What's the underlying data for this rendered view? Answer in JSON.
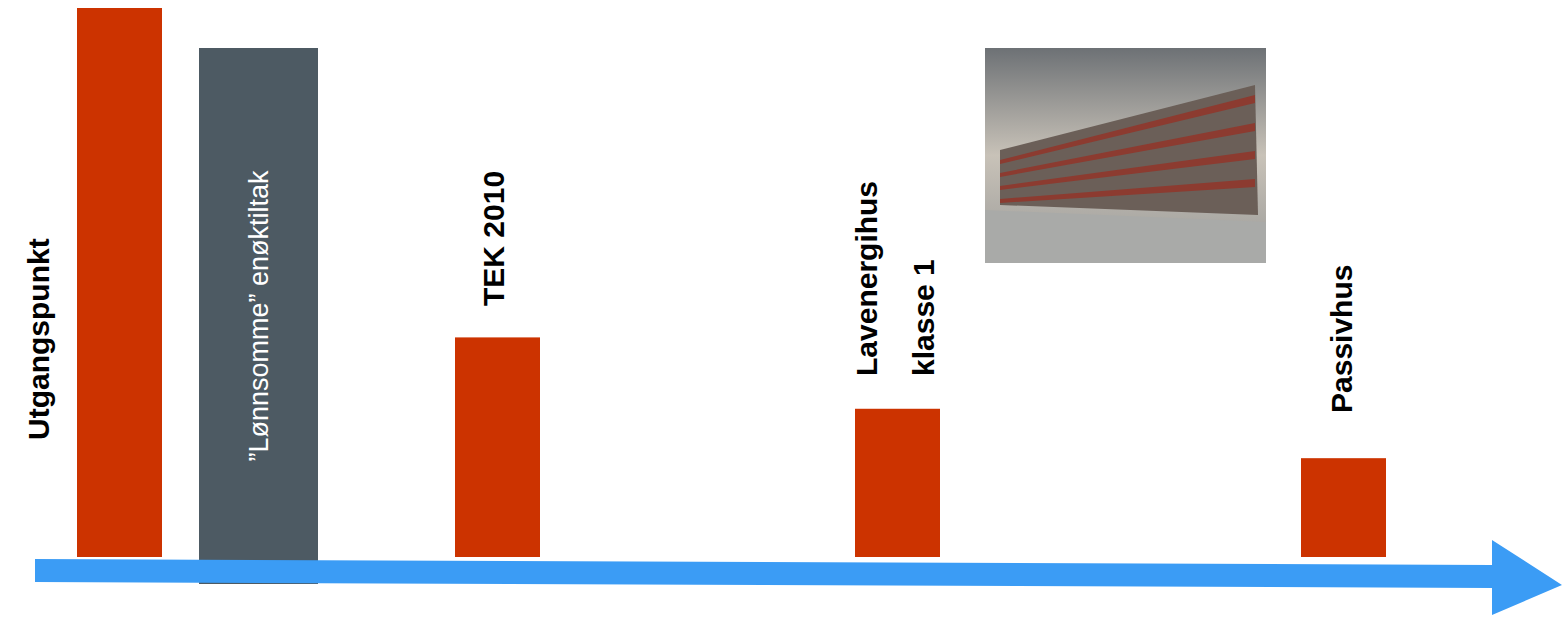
{
  "chart_data": {
    "type": "bar",
    "categories": [
      "Utgangspunkt",
      "TEK 2010",
      "Lavenergihus klasse 1",
      "Passivhus"
    ],
    "values": [
      100,
      40,
      27,
      18
    ],
    "color": "#cc3300",
    "ylim": [
      0,
      100
    ],
    "tick_labels": false,
    "annotations": [
      "”Lønnsomme” enøktiltak"
    ]
  }
}
